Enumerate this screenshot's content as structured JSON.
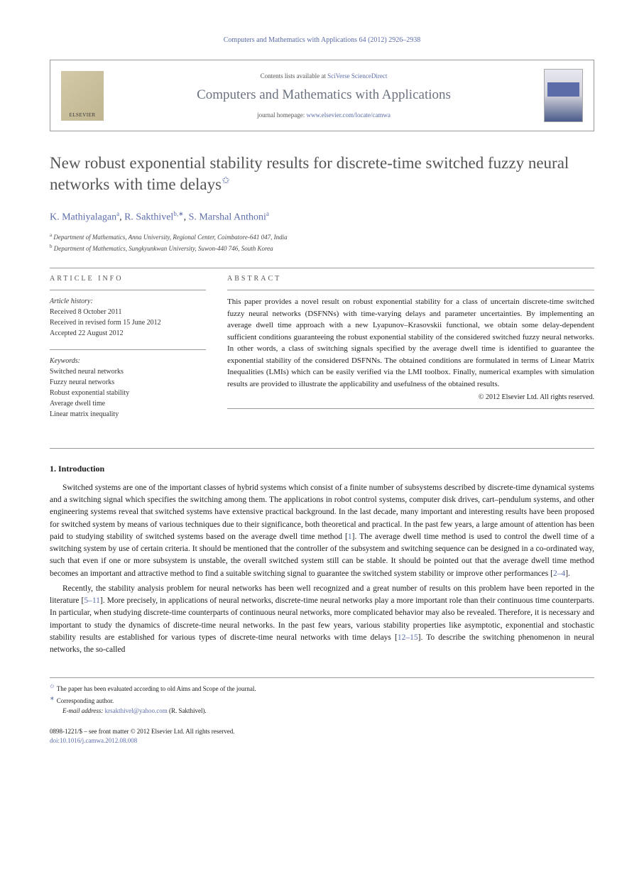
{
  "citation": "Computers and Mathematics with Applications 64 (2012) 2926–2938",
  "header": {
    "contents_prefix": "Contents lists available at ",
    "contents_link": "SciVerse ScienceDirect",
    "journal_name": "Computers and Mathematics with Applications",
    "homepage_prefix": "journal homepage: ",
    "homepage_link": "www.elsevier.com/locate/camwa",
    "elsevier_label": "ELSEVIER"
  },
  "title": "New robust exponential stability results for discrete-time switched fuzzy neural networks with time delays",
  "authors": [
    {
      "name": "K. Mathiyalagan",
      "sup": "a"
    },
    {
      "name": "R. Sakthivel",
      "sup": "b,∗"
    },
    {
      "name": "S. Marshal Anthoni",
      "sup": "a"
    }
  ],
  "affiliations": [
    {
      "sup": "a",
      "text": "Department of Mathematics, Anna University, Regional Center, Coimbatore-641 047, India"
    },
    {
      "sup": "b",
      "text": "Department of Mathematics, Sungkyunkwan University, Suwon-440 746, South Korea"
    }
  ],
  "article_info": {
    "heading": "ARTICLE INFO",
    "history_label": "Article history:",
    "history": [
      "Received 8 October 2011",
      "Received in revised form 15 June 2012",
      "Accepted 22 August 2012"
    ],
    "keywords_label": "Keywords:",
    "keywords": [
      "Switched neural networks",
      "Fuzzy neural networks",
      "Robust exponential stability",
      "Average dwell time",
      "Linear matrix inequality"
    ]
  },
  "abstract": {
    "heading": "ABSTRACT",
    "text": "This paper provides a novel result on robust exponential stability for a class of uncertain discrete-time switched fuzzy neural networks (DSFNNs) with time-varying delays and parameter uncertainties. By implementing an average dwell time approach with a new Lyapunov–Krasovskii functional, we obtain some delay-dependent sufficient conditions guaranteeing the robust exponential stability of the considered switched fuzzy neural networks. In other words, a class of switching signals specified by the average dwell time is identified to guarantee the exponential stability of the considered DSFNNs. The obtained conditions are formulated in terms of Linear Matrix Inequalities (LMIs) which can be easily verified via the LMI toolbox. Finally, numerical examples with simulation results are provided to illustrate the applicability and usefulness of the obtained results.",
    "copyright": "© 2012 Elsevier Ltd. All rights reserved."
  },
  "sections": {
    "intro_heading": "1. Introduction",
    "intro_p1": "Switched systems are one of the important classes of hybrid systems which consist of a finite number of subsystems described by discrete-time dynamical systems and a switching signal which specifies the switching among them. The applications in robot control systems, computer disk drives, cart–pendulum systems, and other engineering systems reveal that switched systems have extensive practical background. In the last decade, many important and interesting results have been proposed for switched system by means of various techniques due to their significance, both theoretical and practical. In the past few years, a large amount of attention has been paid to studying stability of switched systems based on the average dwell time method [1]. The average dwell time method is used to control the dwell time of a switching system by use of certain criteria. It should be mentioned that the controller of the subsystem and switching sequence can be designed in a co-ordinated way, such that even if one or more subsystem is unstable, the overall switched system still can be stable. It should be pointed out that the average dwell time method becomes an important and attractive method to find a suitable switching signal to guarantee the switched system stability or improve other performances [2–4].",
    "intro_p2": "Recently, the stability analysis problem for neural networks has been well recognized and a great number of results on this problem have been reported in the literature [5–11]. More precisely, in applications of neural networks, discrete-time neural networks play a more important role than their continuous time counterparts. In particular, when studying discrete-time counterparts of continuous neural networks, more complicated behavior may also be revealed. Therefore, it is necessary and important to study the dynamics of discrete-time neural networks. In the past few years, various stability properties like asymptotic, exponential and stochastic stability results are established for various types of discrete-time neural networks with time delays [12–15]. To describe the switching phenomenon in neural networks, the so-called"
  },
  "footnotes": {
    "star": "The paper has been evaluated according to old Aims and Scope of the journal.",
    "corr": "Corresponding author.",
    "email_label": "E-mail address:",
    "email": "krsakthivel@yahoo.com",
    "email_author": "(R. Sakthivel)."
  },
  "footer": {
    "line1": "0898-1221/$ – see front matter © 2012 Elsevier Ltd. All rights reserved.",
    "doi_label": "doi:",
    "doi": "10.1016/j.camwa.2012.08.008"
  },
  "refs": {
    "r1": "1",
    "r2_4": "2–4",
    "r5_11": "5–11",
    "r12_15": "12–15"
  },
  "colors": {
    "link": "#5b6ca8",
    "text": "#1a1a1a",
    "muted": "#555555",
    "rule": "#999999",
    "background": "#ffffff"
  }
}
